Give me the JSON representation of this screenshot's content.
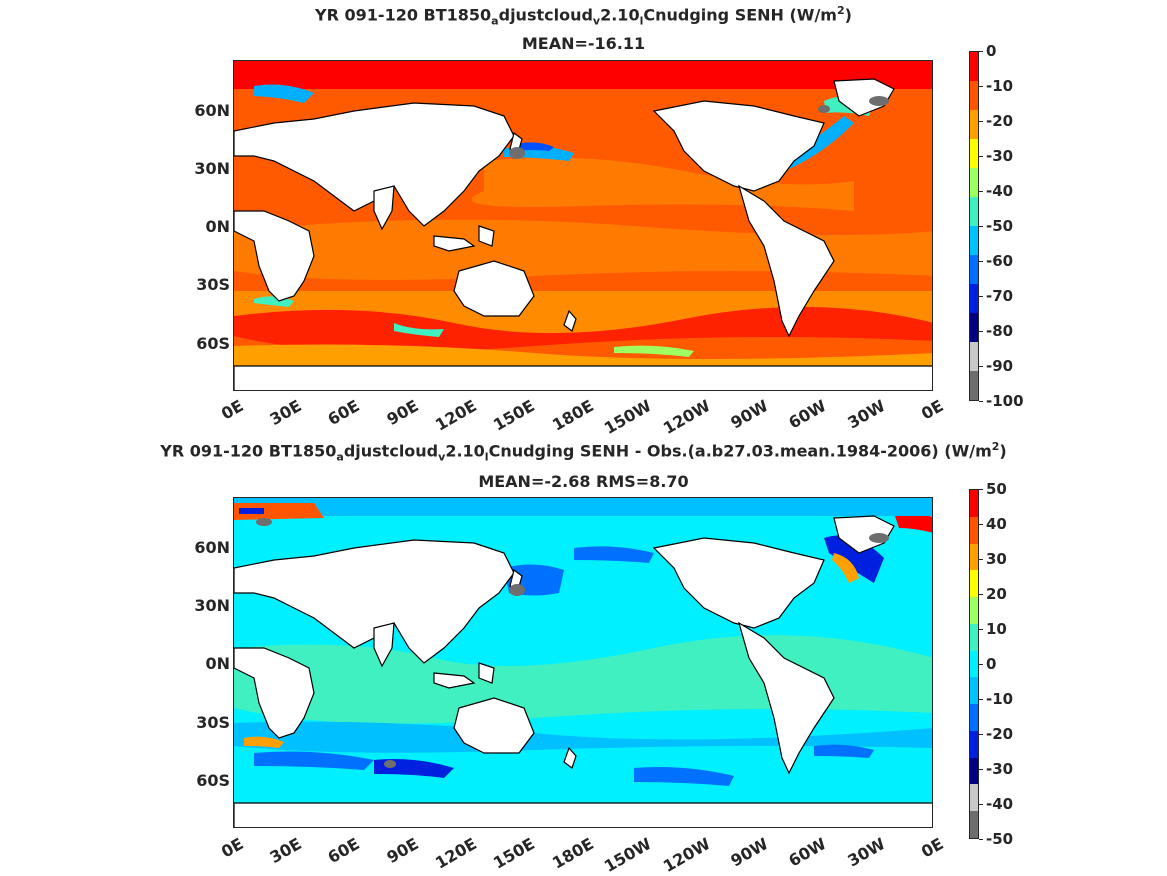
{
  "top": {
    "title_a": "YR 091-120 BT1850",
    "title_sub1": "a",
    "title_b": "djustcloud",
    "title_sub2": "v",
    "title_c": "2.10",
    "title_sub3": "l",
    "title_d": "Cnudging  SENH (W/m",
    "title_sup": "2",
    "title_e": ")",
    "subtitle": "MEAN=-16.11",
    "colorbar_labels": [
      "0",
      "-10",
      "-20",
      "-30",
      "-40",
      "-50",
      "-60",
      "-70",
      "-80",
      "-90",
      "-100"
    ],
    "colorbar_colors": [
      "#ff0000",
      "#ff5500",
      "#ffa000",
      "#ffff00",
      "#a0ff60",
      "#40f0c0",
      "#00c0ff",
      "#0070ff",
      "#0020e0",
      "#000080",
      "#c8c8c8",
      "#6e6e6e"
    ]
  },
  "bottom": {
    "title_a": "YR 091-120 BT1850",
    "title_sub1": "a",
    "title_b": "djustcloud",
    "title_sub2": "v",
    "title_c": "2.10",
    "title_sub3": "l",
    "title_d": "Cnudging SENH - Obs.(a.b27.03.mean.1984-2006) (W/m",
    "title_sup": "2",
    "title_e": ")",
    "subtitle": "MEAN=-2.68 RMS=8.70",
    "colorbar_labels": [
      "50",
      "40",
      "30",
      "20",
      "10",
      "0",
      "-10",
      "-20",
      "-30",
      "-40",
      "-50"
    ],
    "colorbar_colors": [
      "#ff0000",
      "#ff5500",
      "#ffa000",
      "#ffff00",
      "#a0ff60",
      "#40f0c0",
      "#00f0ff",
      "#00c0ff",
      "#0070ff",
      "#0020e0",
      "#000080",
      "#c8c8c8",
      "#6e6e6e"
    ]
  },
  "lat_labels": [
    "60N",
    "30N",
    "0N",
    "30S",
    "60S"
  ],
  "lon_labels": [
    "0E",
    "30E",
    "60E",
    "90E",
    "120E",
    "150E",
    "180E",
    "150W",
    "120W",
    "90W",
    "60W",
    "30W",
    "0E"
  ]
}
